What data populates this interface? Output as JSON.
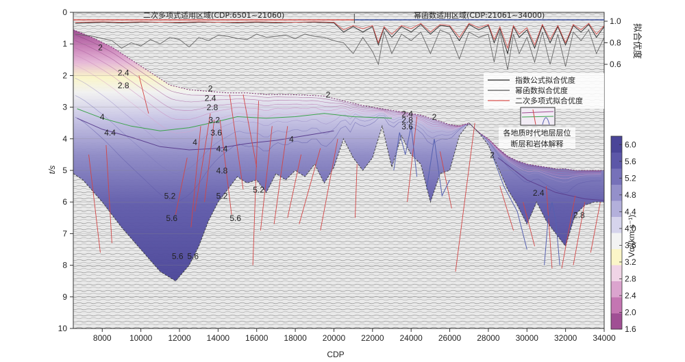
{
  "chart_data": {
    "type": "area",
    "xlabel": "CDP",
    "ylabel_left": "t/s",
    "ylabel_right": "拟合优度",
    "x_range": [
      6500,
      34000
    ],
    "y_range": [
      0,
      10
    ],
    "fit_axis_range": [
      0.5,
      1.05
    ],
    "x_ticks": [
      "8000",
      "10000",
      "12000",
      "14000",
      "16000",
      "18000",
      "20000",
      "22000",
      "24000",
      "26000",
      "28000",
      "30000",
      "32000",
      "34000"
    ],
    "y_ticks": [
      "0",
      "1",
      "2",
      "3",
      "4",
      "5",
      "6",
      "7",
      "8",
      "9",
      "10"
    ],
    "fit_ticks": [
      "1.0",
      "0.8",
      "0.6"
    ],
    "regions": [
      {
        "label": "二次多项式适用区域(CDP:6501~21060)",
        "from": 6501,
        "to": 21060,
        "color": "#d9534f"
      },
      {
        "label": "幂函数适用区域(CDP:21061~34000)",
        "from": 21061,
        "to": 34000,
        "color": "#3b4fa0"
      }
    ],
    "legend_title": "",
    "legend": [
      {
        "name": "指数公式拟合优度",
        "color": "#222222"
      },
      {
        "name": "幂函数拟合优度",
        "color": "#555555"
      },
      {
        "name": "二次多项式拟合优度",
        "color": "#d9534f"
      }
    ],
    "legend_extra": [
      "各地质时代地层层位",
      "断层和岩体解释"
    ],
    "colorbar": {
      "label": "Vα/(km·s⁻¹)",
      "ticks": [
        "1.6",
        "2.0",
        "2.4",
        "2.8",
        "3.2",
        "3.6",
        "4.0",
        "4.4",
        "4.8",
        "5.2",
        "5.6",
        "6.0"
      ],
      "vmin": 1.6,
      "vmax": 6.2,
      "colors": [
        "#a04f94",
        "#c476b2",
        "#dba4ce",
        "#f0d4e6",
        "#fbf6c8",
        "#f3f3f3",
        "#d6d4ec",
        "#b3b0db",
        "#9490ca",
        "#7671b9",
        "#5c57a8",
        "#4a4598"
      ]
    },
    "contour_labels": [
      {
        "text": "2",
        "x": 7900,
        "y": 1.2
      },
      {
        "text": "2.4",
        "x": 9100,
        "y": 2.0
      },
      {
        "text": "2.8",
        "x": 9100,
        "y": 2.4
      },
      {
        "text": "4",
        "x": 8000,
        "y": 3.4
      },
      {
        "text": "4.4",
        "x": 8400,
        "y": 3.9
      },
      {
        "text": "5.2",
        "x": 11500,
        "y": 5.9
      },
      {
        "text": "5.6",
        "x": 11600,
        "y": 6.6
      },
      {
        "text": "2",
        "x": 13600,
        "y": 2.5
      },
      {
        "text": "2.4",
        "x": 13600,
        "y": 2.8
      },
      {
        "text": "2.8",
        "x": 13700,
        "y": 3.1
      },
      {
        "text": "3.2",
        "x": 13800,
        "y": 3.5
      },
      {
        "text": "3.6",
        "x": 13900,
        "y": 3.9
      },
      {
        "text": "4",
        "x": 12800,
        "y": 4.2
      },
      {
        "text": "4",
        "x": 17800,
        "y": 4.1
      },
      {
        "text": "4.4",
        "x": 14200,
        "y": 4.4
      },
      {
        "text": "4.8",
        "x": 14200,
        "y": 5.1
      },
      {
        "text": "5.2",
        "x": 14200,
        "y": 5.9
      },
      {
        "text": "5.2",
        "x": 16100,
        "y": 5.7
      },
      {
        "text": "5.6",
        "x": 14900,
        "y": 6.6
      },
      {
        "text": "5.6",
        "x": 12700,
        "y": 7.8
      },
      {
        "text": "5.6",
        "x": 11900,
        "y": 7.8
      },
      {
        "text": "2",
        "x": 19700,
        "y": 2.7
      },
      {
        "text": "2.4",
        "x": 23800,
        "y": 3.3
      },
      {
        "text": "2.8",
        "x": 23800,
        "y": 3.5
      },
      {
        "text": "3.6",
        "x": 23800,
        "y": 3.7
      },
      {
        "text": "2",
        "x": 25200,
        "y": 3.4
      },
      {
        "text": "2",
        "x": 28200,
        "y": 4.6
      },
      {
        "text": "2.4",
        "x": 30600,
        "y": 5.8
      },
      {
        "text": "2.8",
        "x": 32700,
        "y": 6.5
      }
    ],
    "fit_series": [
      {
        "name": "指数公式拟合优度",
        "x": [
          6600,
          8000,
          9000,
          10000,
          11000,
          12000,
          13000,
          14000,
          15000,
          16000,
          17000,
          18000,
          19000,
          20000,
          20500,
          21000,
          21500,
          22000,
          22300,
          22600,
          23000,
          23500,
          24000,
          24500,
          25000,
          25500,
          26000,
          26500,
          27000,
          27500,
          28000,
          28300,
          28600,
          29000,
          29300,
          29600,
          30000,
          30400,
          30800,
          31200,
          31600,
          32000,
          32400,
          32800,
          33200,
          33600,
          34000
        ],
        "values": [
          0.98,
          0.99,
          0.985,
          0.99,
          0.99,
          0.985,
          0.99,
          0.99,
          0.985,
          0.99,
          0.985,
          0.99,
          0.99,
          0.985,
          0.9,
          0.95,
          0.9,
          0.95,
          0.78,
          0.94,
          0.85,
          0.95,
          0.9,
          0.97,
          0.88,
          0.96,
          0.95,
          0.82,
          0.97,
          0.92,
          0.96,
          0.8,
          0.93,
          0.7,
          0.95,
          0.85,
          0.92,
          0.75,
          0.96,
          0.8,
          0.95,
          0.78,
          0.96,
          0.9,
          0.97,
          0.85,
          0.95
        ]
      },
      {
        "name": "幂函数拟合优度",
        "x": [
          6600,
          7500,
          8500,
          9000,
          9500,
          10000,
          10500,
          11000,
          11500,
          12000,
          12500,
          13000,
          13500,
          14000,
          14500,
          15000,
          15500,
          16000,
          16500,
          17000,
          17500,
          18000,
          18500,
          19000,
          19500,
          20000,
          20500,
          21000,
          21500,
          22000,
          22300,
          22600,
          23000,
          23500,
          24000,
          24500,
          25000,
          25500,
          26000,
          26500,
          27000,
          27500,
          28000,
          28300,
          28600,
          29000,
          29300,
          29600,
          30000,
          30400,
          30800,
          31200,
          31600,
          32000,
          32400,
          32800,
          33200,
          33600,
          34000
        ],
        "values": [
          0.88,
          0.86,
          0.82,
          0.75,
          0.8,
          0.77,
          0.83,
          0.79,
          0.85,
          0.83,
          0.76,
          0.85,
          0.82,
          0.87,
          0.86,
          0.84,
          0.83,
          0.88,
          0.85,
          0.86,
          0.87,
          0.84,
          0.88,
          0.86,
          0.85,
          0.82,
          0.8,
          0.7,
          0.85,
          0.72,
          0.6,
          0.9,
          0.7,
          0.88,
          0.82,
          0.9,
          0.7,
          0.92,
          0.88,
          0.65,
          0.9,
          0.85,
          0.88,
          0.62,
          0.9,
          0.55,
          0.88,
          0.7,
          0.85,
          0.62,
          0.9,
          0.6,
          0.88,
          0.58,
          0.9,
          0.82,
          0.92,
          0.7,
          0.85
        ]
      },
      {
        "name": "二次多项式拟合优度",
        "x": [
          6600,
          8000,
          9000,
          10000,
          11000,
          12000,
          13000,
          14000,
          15000,
          16000,
          17000,
          18000,
          19000,
          20000,
          20500,
          21000,
          21500,
          22000,
          22300,
          22600,
          23000,
          23500,
          24000,
          24500,
          25000,
          25500,
          26000,
          26500,
          27000,
          27500,
          28000,
          28300,
          28600,
          29000,
          29300,
          29600,
          30000,
          30400,
          30800,
          31200,
          31600,
          32000,
          32400,
          32800,
          33200,
          33600,
          34000
        ],
        "values": [
          0.99,
          0.995,
          0.99,
          0.995,
          0.99,
          0.99,
          0.995,
          0.99,
          0.99,
          0.995,
          0.99,
          0.99,
          0.995,
          0.99,
          0.92,
          0.96,
          0.93,
          0.96,
          0.8,
          0.95,
          0.88,
          0.96,
          0.93,
          0.98,
          0.9,
          0.97,
          0.96,
          0.85,
          0.98,
          0.94,
          0.97,
          0.83,
          0.95,
          0.75,
          0.96,
          0.88,
          0.94,
          0.78,
          0.97,
          0.83,
          0.96,
          0.8,
          0.97,
          0.92,
          0.98,
          0.88,
          0.96
        ]
      }
    ],
    "basement_depth": {
      "x": [
        6500,
        7000,
        8000,
        9000,
        10000,
        11000,
        11800,
        12500,
        13000,
        13500,
        14000,
        15000,
        15500,
        16000,
        16500,
        17000,
        17500,
        18000,
        18500,
        19000,
        19500,
        20000,
        20500,
        21000,
        21500,
        22000,
        22500,
        23000,
        23500,
        24000,
        24500,
        25000,
        25500,
        26000,
        26500,
        27000,
        27500,
        28000,
        28500,
        29000,
        29500,
        30000,
        30500,
        31000,
        31500,
        32000,
        32500,
        33000,
        33500,
        34000
      ],
      "values": [
        5.1,
        5.3,
        6.0,
        6.8,
        7.5,
        8.2,
        8.5,
        8.0,
        7.4,
        6.6,
        6.0,
        5.2,
        5.4,
        5.3,
        5.7,
        5.1,
        5.3,
        5.0,
        5.2,
        4.8,
        5.4,
        4.9,
        4.0,
        4.6,
        5.0,
        4.6,
        3.6,
        4.9,
        3.9,
        4.5,
        4.8,
        6.0,
        5.1,
        5.0,
        3.9,
        3.5,
        3.8,
        4.2,
        4.9,
        5.6,
        6.1,
        6.7,
        6.0,
        6.6,
        7.0,
        7.4,
        6.4,
        6.1,
        6.0,
        6.0
      ]
    },
    "top_depth": {
      "x": [
        6500,
        7500,
        8500,
        9500,
        10500,
        11500,
        12500,
        13500,
        14500,
        15500,
        16500,
        17500,
        18500,
        19500,
        20500,
        21500,
        22500,
        23500,
        24500,
        25000,
        25500,
        26000,
        26500,
        27000,
        27500,
        28000,
        28500,
        29000,
        29500,
        30000,
        30500,
        31000,
        31500,
        32000,
        32500,
        33000,
        33500,
        34000
      ],
      "values": [
        0.55,
        0.8,
        1.1,
        1.5,
        1.9,
        2.3,
        2.45,
        2.5,
        2.55,
        2.55,
        2.6,
        2.6,
        2.62,
        2.65,
        2.8,
        2.95,
        3.05,
        3.15,
        3.25,
        3.35,
        3.45,
        3.55,
        3.6,
        3.5,
        3.8,
        4.0,
        4.3,
        4.55,
        4.7,
        4.8,
        4.85,
        4.9,
        4.95,
        4.95,
        5.0,
        5.0,
        5.0,
        5.0
      ]
    }
  }
}
